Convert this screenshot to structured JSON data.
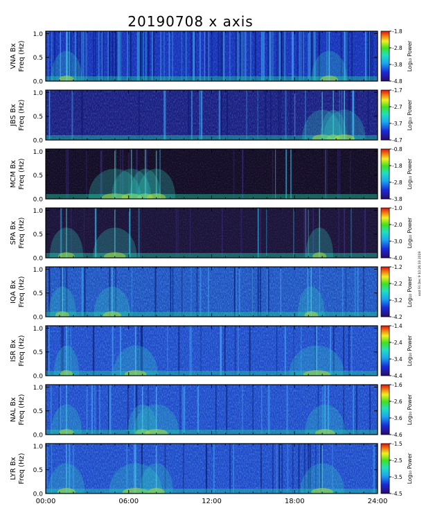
{
  "title": "20190708 x axis",
  "side_note": "ssst Fri Dec 9 10:26:33 2019",
  "x_ticks": [
    "00:00",
    "06:00",
    "12:00",
    "18:00",
    "24:00"
  ],
  "y_ticks": [
    "0.0",
    "0.5",
    "1.0"
  ],
  "colorbar_label": "Log₁₀ Power",
  "chart_data": [
    {
      "type": "heatmap",
      "station": "VNA",
      "ylabel_line1": "VNA Bx",
      "ylabel_line2": "Freq (Hz)",
      "xlim": [
        0,
        24
      ],
      "ylim": [
        0,
        1.05
      ],
      "cbar_ticks": [
        "-1.8",
        "-2.8",
        "-3.8",
        "-4.8"
      ],
      "bg": "#1830b8",
      "burst_hours": [
        1.5,
        20.5
      ],
      "style": "striped"
    },
    {
      "type": "heatmap",
      "station": "JBS",
      "ylabel_line1": "JBS Bx",
      "ylabel_line2": "Freq (Hz)",
      "xlim": [
        0,
        24
      ],
      "ylim": [
        0,
        1.05
      ],
      "cbar_ticks": [
        "-1.7",
        "-2.7",
        "-3.7",
        "-4.7"
      ],
      "bg": "#1c1c80",
      "burst_hours": [
        20.0,
        20.8,
        21.6
      ],
      "style": "quiet"
    },
    {
      "type": "heatmap",
      "station": "MCM",
      "ylabel_line1": "MCM Bx",
      "ylabel_line2": "Freq (Hz)",
      "xlim": [
        0,
        24
      ],
      "ylim": [
        0,
        1.05
      ],
      "cbar_ticks": [
        "-0.8",
        "-1.8",
        "-2.8",
        "-3.8"
      ],
      "bg": "#120d24",
      "burst_hours": [
        5.0,
        6.2,
        7.2,
        8.0
      ],
      "style": "dark"
    },
    {
      "type": "heatmap",
      "station": "SPA",
      "ylabel_line1": "SPA Bx",
      "ylabel_line2": "Freq (Hz)",
      "xlim": [
        0,
        24
      ],
      "ylim": [
        0,
        1.05
      ],
      "cbar_ticks": [
        "-1.0",
        "-2.0",
        "-3.0",
        "-4.0"
      ],
      "bg": "#1a1438",
      "burst_hours": [
        1.5,
        5.0,
        19.8
      ],
      "style": "dark"
    },
    {
      "type": "heatmap",
      "station": "IQA",
      "ylabel_line1": "IQA Bx",
      "ylabel_line2": "Freq (Hz)",
      "xlim": [
        0,
        24
      ],
      "ylim": [
        0,
        1.05
      ],
      "cbar_ticks": [
        "-1.2",
        "-2.2",
        "-3.2",
        "-4.2"
      ],
      "bg": "#2050c0",
      "burst_hours": [
        1.2,
        4.8,
        19.2
      ],
      "style": "bright"
    },
    {
      "type": "heatmap",
      "station": "ISR",
      "ylabel_line1": "ISR Bx",
      "ylabel_line2": "Freq (Hz)",
      "xlim": [
        0,
        24
      ],
      "ylim": [
        0,
        1.05
      ],
      "cbar_ticks": [
        "-1.4",
        "-2.4",
        "-3.4",
        "-4.4"
      ],
      "bg": "#2048c8",
      "burst_hours": [
        1.5,
        6.5,
        19.6
      ],
      "style": "bright"
    },
    {
      "type": "heatmap",
      "station": "NAL",
      "ylabel_line1": "NAL Bx",
      "ylabel_line2": "Freq (Hz)",
      "xlim": [
        0,
        24
      ],
      "ylim": [
        0,
        1.05
      ],
      "cbar_ticks": [
        "-1.6",
        "-2.6",
        "-3.6",
        "-4.6"
      ],
      "bg": "#2048c8",
      "burst_hours": [
        1.5,
        7.0,
        8.0,
        20.2
      ],
      "style": "bright"
    },
    {
      "type": "heatmap",
      "station": "LYR",
      "ylabel_line1": "LYR Bx",
      "ylabel_line2": "Freq (Hz)",
      "xlim": [
        0,
        24
      ],
      "ylim": [
        0,
        1.05
      ],
      "cbar_ticks": [
        "-1.5",
        "-2.5",
        "-3.5",
        "-4.5"
      ],
      "bg": "#2048c8",
      "burst_hours": [
        1.5,
        6.5,
        8.0,
        20.0
      ],
      "style": "bright"
    }
  ]
}
